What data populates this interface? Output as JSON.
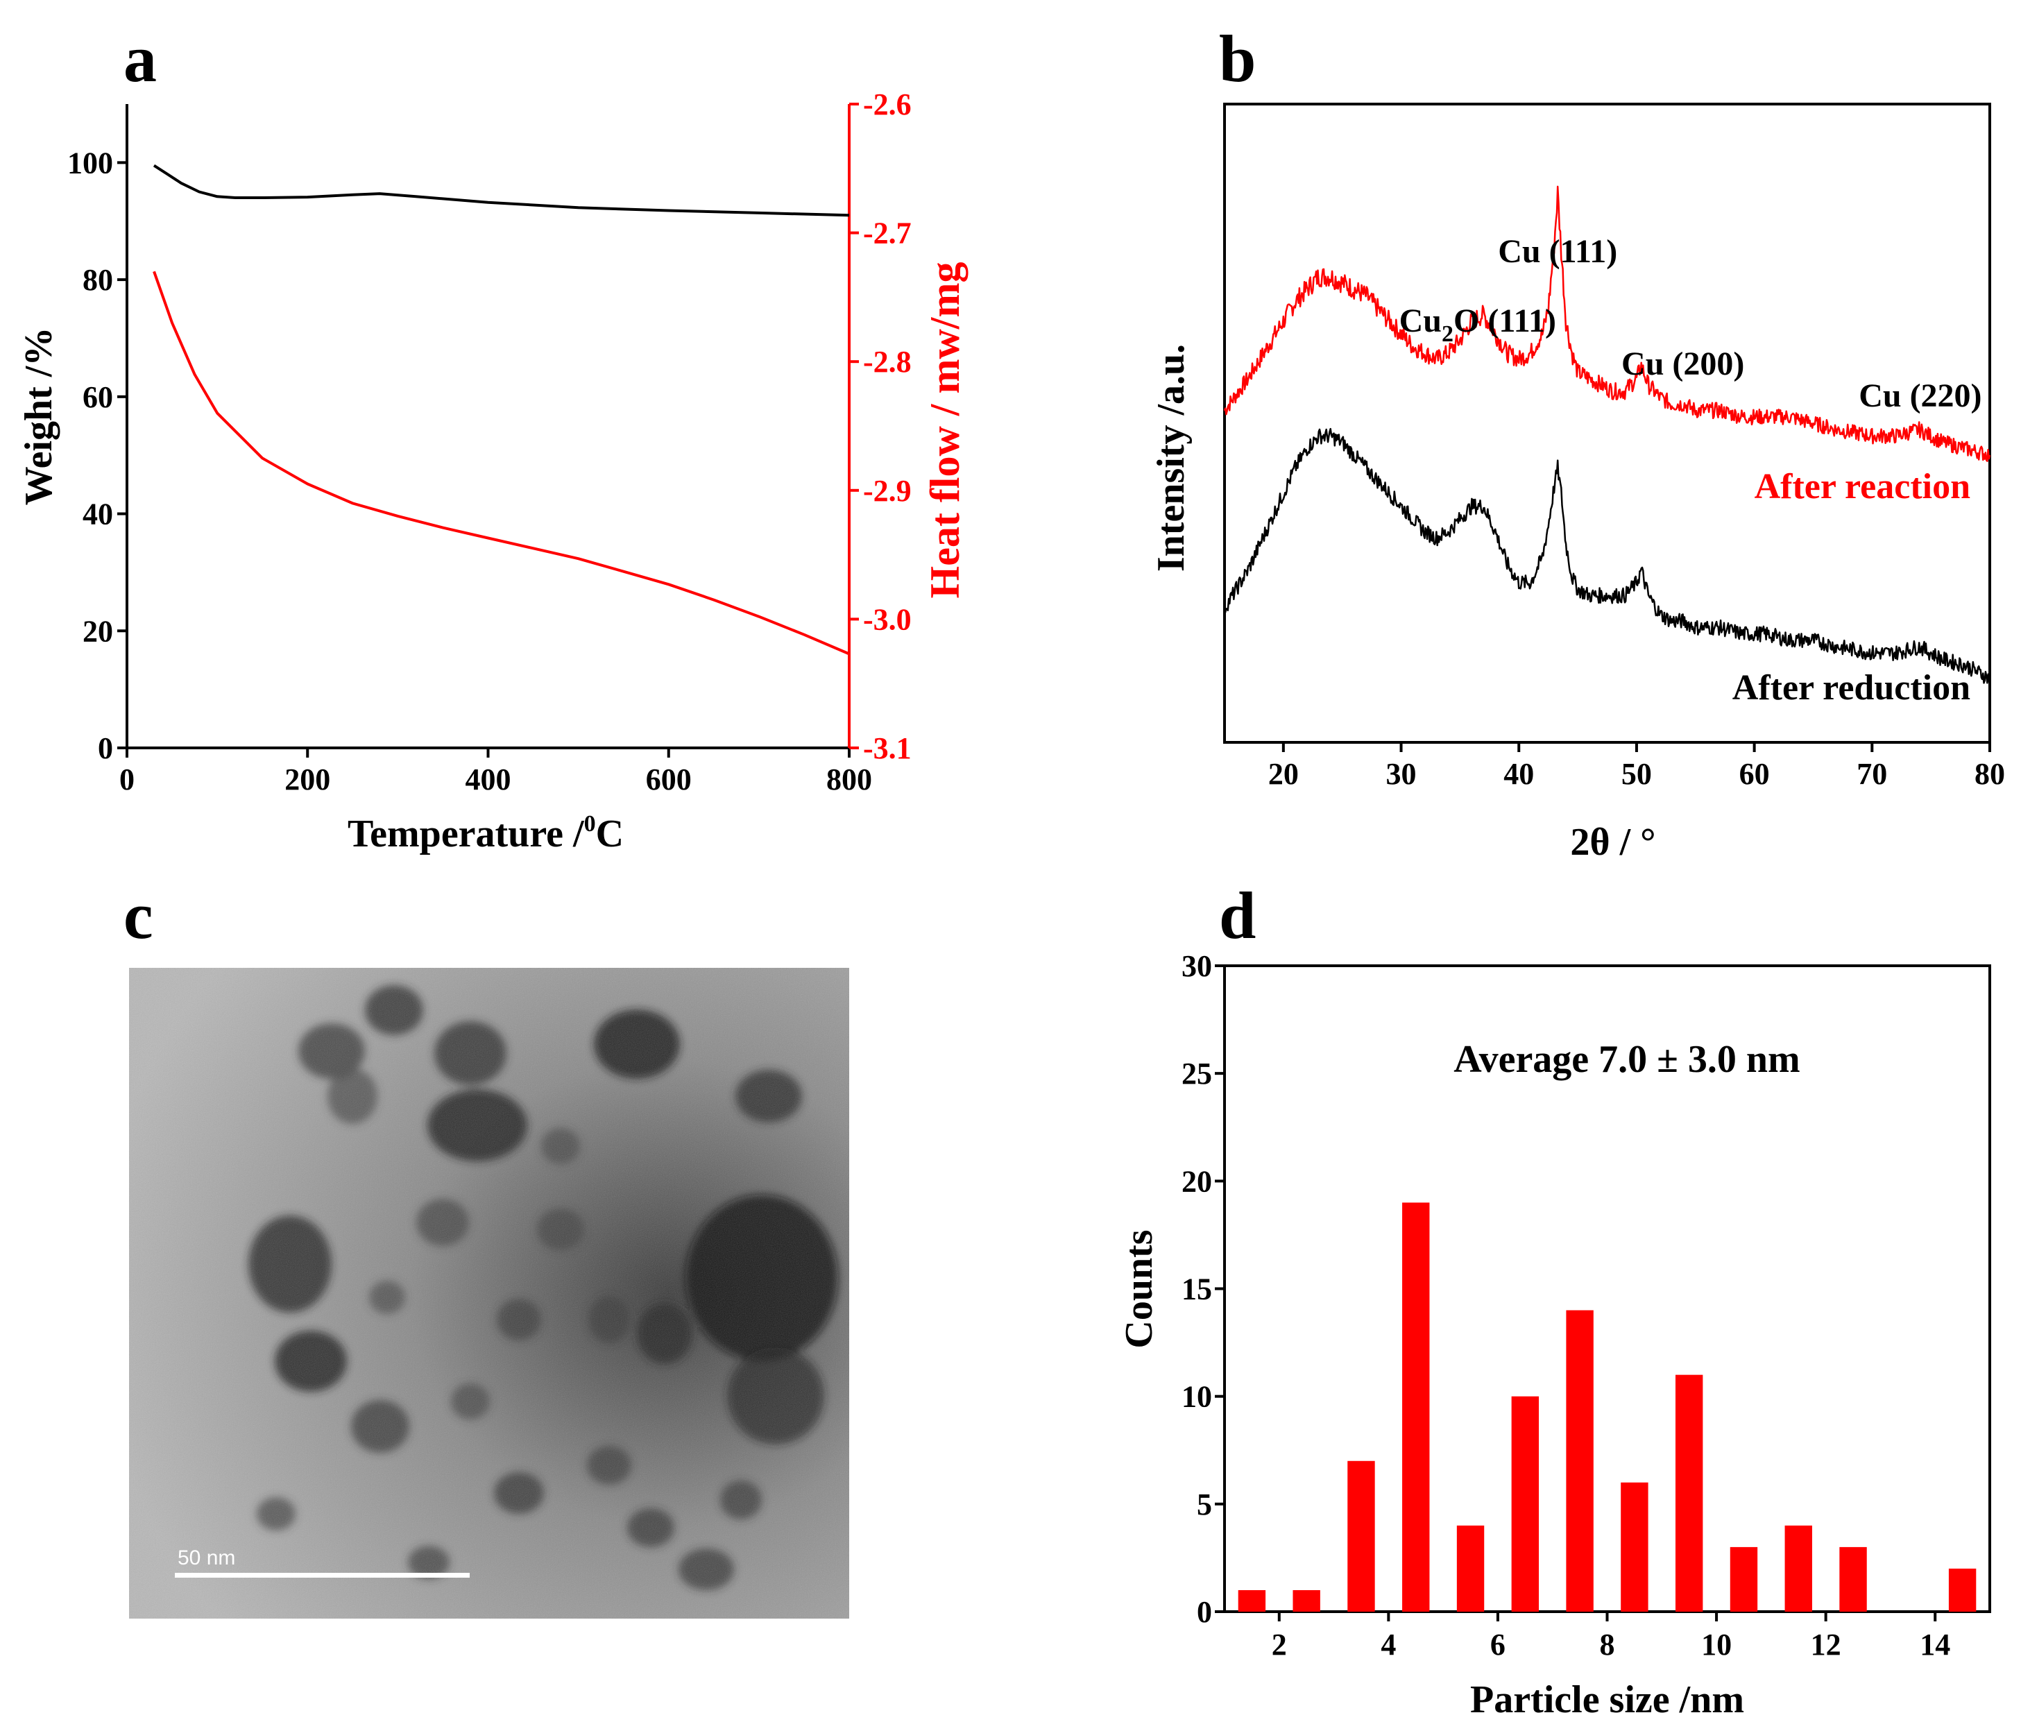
{
  "colors": {
    "red": "#ff0000",
    "black": "#000000"
  },
  "panels": {
    "a": "a",
    "b": "b",
    "c": "c",
    "d": "d"
  },
  "tem_scale_bar": "50 nm",
  "chart_data": [
    {
      "id": "a",
      "type": "line",
      "xlabel_main": "Temperature /",
      "xlabel_sup": "0",
      "xlabel_unit": "C",
      "ylabel": "Weight /%",
      "y2label": "Heat flow / mw/mg",
      "xlim": [
        0,
        800
      ],
      "ylim": [
        0,
        110
      ],
      "y2lim": [
        -3.1,
        -2.6
      ],
      "xticks": [
        0,
        200,
        400,
        600,
        800
      ],
      "yticks": [
        0,
        20,
        40,
        60,
        80,
        100
      ],
      "y2ticks": [
        -2.6,
        -2.7,
        -2.8,
        -2.9,
        -3.0,
        -3.1
      ],
      "series": [
        {
          "name": "Weight",
          "axis": "left",
          "color": "#000000",
          "x": [
            30,
            45,
            60,
            80,
            100,
            120,
            150,
            200,
            250,
            280,
            320,
            400,
            500,
            600,
            700,
            800
          ],
          "y": [
            99.5,
            98,
            96.5,
            95,
            94.2,
            94,
            94,
            94.1,
            94.5,
            94.7,
            94.2,
            93.2,
            92.3,
            91.8,
            91.4,
            91.0
          ]
        },
        {
          "name": "Heat flow",
          "axis": "right",
          "color": "#ff0000",
          "x": [
            30,
            50,
            75,
            100,
            150,
            200,
            250,
            300,
            350,
            400,
            450,
            500,
            550,
            600,
            650,
            700,
            750,
            800
          ],
          "y": [
            -2.73,
            -2.77,
            -2.81,
            -2.84,
            -2.875,
            -2.895,
            -2.91,
            -2.92,
            -2.929,
            -2.937,
            -2.945,
            -2.953,
            -2.963,
            -2.973,
            -2.985,
            -2.998,
            -3.012,
            -3.027
          ]
        }
      ]
    },
    {
      "id": "b",
      "type": "line",
      "xlabel": "2θ / °",
      "ylabel": "Intensity /a.u.",
      "xlim": [
        15,
        80
      ],
      "xticks": [
        20,
        30,
        40,
        50,
        60,
        70,
        80
      ],
      "annotations": [
        {
          "text": "Cu (111)",
          "x": 43.3
        },
        {
          "text_main": "Cu",
          "text_sub": "2",
          "text_tail": "O (111)",
          "x": 36.5
        },
        {
          "text": "Cu (200)",
          "x": 50.4
        },
        {
          "text": "Cu (220)",
          "x": 74.1
        }
      ],
      "series": [
        {
          "name": "After reaction",
          "color": "#ff0000",
          "x": [
            15,
            17,
            19,
            21,
            22,
            23,
            24,
            25,
            26,
            27,
            28,
            29,
            30,
            31,
            32,
            33,
            34,
            35,
            36,
            37,
            38,
            39,
            40,
            41,
            42,
            42.5,
            43,
            43.3,
            43.6,
            44,
            44.5,
            45,
            46,
            47,
            48,
            49,
            50,
            50.4,
            51,
            52,
            53,
            54,
            55,
            57,
            59,
            61,
            63,
            65,
            67,
            70,
            72,
            74,
            76,
            78,
            80
          ],
          "y": [
            0.52,
            0.57,
            0.63,
            0.69,
            0.71,
            0.73,
            0.73,
            0.72,
            0.71,
            0.7,
            0.68,
            0.66,
            0.64,
            0.62,
            0.61,
            0.6,
            0.61,
            0.63,
            0.66,
            0.67,
            0.64,
            0.61,
            0.6,
            0.61,
            0.64,
            0.68,
            0.78,
            0.86,
            0.77,
            0.66,
            0.61,
            0.58,
            0.57,
            0.56,
            0.55,
            0.55,
            0.57,
            0.59,
            0.56,
            0.54,
            0.53,
            0.53,
            0.52,
            0.52,
            0.51,
            0.51,
            0.51,
            0.5,
            0.49,
            0.48,
            0.48,
            0.49,
            0.47,
            0.46,
            0.45
          ]
        },
        {
          "name": "After reduction",
          "color": "#000000",
          "x": [
            15,
            17,
            19,
            21,
            22,
            23,
            24,
            25,
            26,
            27,
            28,
            29,
            30,
            31,
            32,
            33,
            34,
            35,
            36,
            37,
            38,
            39,
            40,
            41,
            42,
            42.5,
            43,
            43.3,
            43.6,
            44,
            44.5,
            45,
            46,
            47,
            48,
            49,
            50,
            50.4,
            51,
            52,
            53,
            54,
            55,
            57,
            59,
            61,
            63,
            65,
            67,
            70,
            72,
            74,
            76,
            78,
            80
          ],
          "y": [
            0.21,
            0.27,
            0.35,
            0.43,
            0.46,
            0.48,
            0.48,
            0.47,
            0.45,
            0.43,
            0.41,
            0.39,
            0.37,
            0.35,
            0.33,
            0.32,
            0.33,
            0.35,
            0.37,
            0.37,
            0.33,
            0.28,
            0.25,
            0.25,
            0.29,
            0.34,
            0.4,
            0.43,
            0.39,
            0.31,
            0.26,
            0.24,
            0.23,
            0.23,
            0.23,
            0.23,
            0.25,
            0.27,
            0.23,
            0.2,
            0.19,
            0.19,
            0.18,
            0.18,
            0.17,
            0.17,
            0.16,
            0.16,
            0.15,
            0.14,
            0.14,
            0.15,
            0.13,
            0.12,
            0.1
          ]
        }
      ]
    },
    {
      "id": "d",
      "type": "bar",
      "xlabel": "Particle size /nm",
      "ylabel": "Counts",
      "annotation": "Average 7.0 ± 3.0 nm",
      "xlim": [
        1,
        15
      ],
      "ylim": [
        0,
        30
      ],
      "xticks": [
        2,
        4,
        6,
        8,
        10,
        12,
        14
      ],
      "yticks": [
        0,
        5,
        10,
        15,
        20,
        25,
        30
      ],
      "bar_color": "#ff0000",
      "x": [
        1.5,
        2.5,
        3.5,
        4.5,
        5.5,
        6.5,
        7.5,
        8.5,
        9.5,
        10.5,
        11.5,
        12.5,
        14.5
      ],
      "values": [
        1,
        1,
        7,
        19,
        4,
        10,
        14,
        6,
        11,
        3,
        4,
        3,
        2
      ]
    }
  ]
}
